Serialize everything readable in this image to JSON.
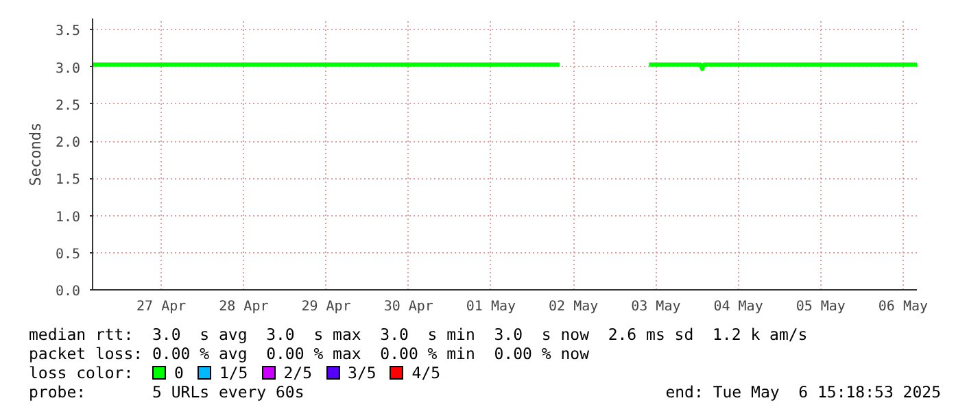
{
  "chart_data": {
    "type": "line",
    "ylabel": "Seconds",
    "legend_title": "loss color:",
    "legend": "bottom",
    "grid": true,
    "marker": "none",
    "line_style": "solid",
    "xlim": [
      "2025-04-26T16:00",
      "2025-05-06T16:00"
    ],
    "xticks": [
      {
        "value": "2025-04-27T12:00",
        "label": "27 Apr"
      },
      {
        "value": "2025-04-28T12:00",
        "label": "28 Apr"
      },
      {
        "value": "2025-04-29T12:00",
        "label": "29 Apr"
      },
      {
        "value": "2025-04-30T12:00",
        "label": "30 Apr"
      },
      {
        "value": "2025-05-01T12:00",
        "label": "01 May"
      },
      {
        "value": "2025-05-02T12:00",
        "label": "02 May"
      },
      {
        "value": "2025-05-03T12:00",
        "label": "03 May"
      },
      {
        "value": "2025-05-04T12:00",
        "label": "04 May"
      },
      {
        "value": "2025-05-05T12:00",
        "label": "05 May"
      },
      {
        "value": "2025-05-06T12:00",
        "label": "06 May"
      }
    ],
    "ylim": [
      0,
      3.65
    ],
    "yticks": [
      {
        "value": 0,
        "label": "0.0"
      },
      {
        "value": 0.5,
        "label": "0.5"
      },
      {
        "value": 1,
        "label": "1.0"
      },
      {
        "value": 1.5,
        "label": "1.5"
      },
      {
        "value": 2,
        "label": "2.0"
      },
      {
        "value": 2.5,
        "label": "2.5"
      },
      {
        "value": 3,
        "label": "3.0"
      },
      {
        "value": 3.5,
        "label": "3.5"
      }
    ],
    "x": [
      "2025-04-26T16:00",
      "2025-05-02T08:00",
      "2025-05-02T09:00",
      "2025-05-03T10:00",
      "2025-05-04T01:00",
      "2025-05-04T01:30",
      "2025-05-04T02:00",
      "2025-05-06T16:00"
    ],
    "series": [
      {
        "name": "0",
        "color": "#00ff00",
        "values": [
          3.03,
          3.03,
          null,
          3.03,
          3.03,
          2.97,
          3.03,
          3.03
        ]
      },
      {
        "name": "1/5",
        "color": "#00b8ff",
        "values": [
          null,
          null,
          null,
          null,
          null,
          null,
          null,
          null
        ]
      },
      {
        "name": "2/5",
        "color": "#cc00ff",
        "values": [
          null,
          null,
          null,
          null,
          null,
          null,
          null,
          null
        ]
      },
      {
        "name": "3/5",
        "color": "#5500ff",
        "values": [
          null,
          null,
          null,
          null,
          null,
          null,
          null,
          null
        ]
      },
      {
        "name": "4/5",
        "color": "#ff0000",
        "values": [
          null,
          null,
          null,
          null,
          null,
          null,
          null,
          null
        ]
      }
    ],
    "annotations": [
      "median rtt:  3.0  s avg  3.0  s max  3.0  s min  3.0  s now  2.6 ms sd  1.2 k am/s",
      "packet loss: 0.00 % avg  0.00 % max  0.00 % min  0.00 % now",
      "probe:       5 URLs every 60s",
      "end: Tue May  6 15:18:53 2025"
    ]
  }
}
